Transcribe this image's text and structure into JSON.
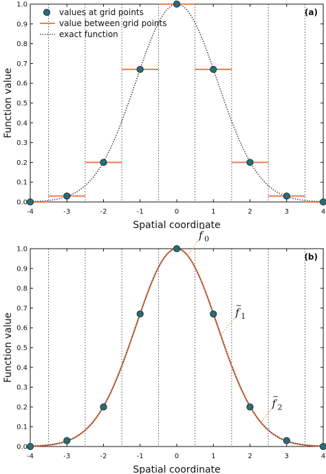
{
  "chart_data": [
    {
      "type": "line",
      "panel_label": "(a)",
      "xlabel": "Spatial coordinate",
      "ylabel": "Function value",
      "xlim": [
        -4,
        4
      ],
      "ylim": [
        0,
        1
      ],
      "x_ticks": [
        "-4",
        "-3",
        "-2",
        "-1",
        "0",
        "1",
        "2",
        "3",
        "4"
      ],
      "y_ticks": [
        "0.0",
        "0.1",
        "0.2",
        "0.3",
        "0.4",
        "0.5",
        "0.6",
        "0.7",
        "0.8",
        "0.9",
        "1.0"
      ],
      "grid_boundaries": [
        -3.5,
        -2.5,
        -1.5,
        -0.5,
        0.5,
        1.5,
        2.5,
        3.5
      ],
      "legend": {
        "placement": "top-left",
        "entries": [
          "values at grid points",
          "value between grid points",
          "exact function"
        ]
      },
      "series": [
        {
          "name": "values at grid points",
          "style": "markers",
          "x": [
            -4,
            -3,
            -2,
            -1,
            0,
            1,
            2,
            3,
            4
          ],
          "y": [
            0.0,
            0.03,
            0.2,
            0.67,
            1.0,
            0.67,
            0.2,
            0.03,
            0.0
          ]
        },
        {
          "name": "value between grid points",
          "style": "piecewise-constant",
          "x": [
            -4,
            -3,
            -2,
            -1,
            0,
            1,
            2,
            3,
            4
          ],
          "y": [
            0.0,
            0.03,
            0.2,
            0.67,
            1.0,
            0.67,
            0.2,
            0.03,
            0.0
          ]
        },
        {
          "name": "exact function",
          "style": "dotted",
          "function": "gaussian",
          "sigma": 1.12
        }
      ]
    },
    {
      "type": "line",
      "panel_label": "(b)",
      "xlabel": "Spatial coordinate",
      "ylabel": "Function value",
      "xlim": [
        -4,
        4
      ],
      "ylim": [
        0,
        1
      ],
      "x_ticks": [
        "-4",
        "-3",
        "-2",
        "-1",
        "0",
        "1",
        "2",
        "3",
        "4"
      ],
      "y_ticks": [
        "0.0",
        "0.1",
        "0.2",
        "0.3",
        "0.4",
        "0.5",
        "0.6",
        "0.7",
        "0.8",
        "0.9",
        "1.0"
      ],
      "grid_boundaries": [
        -3.5,
        -2.5,
        -1.5,
        -0.5,
        0.5,
        1.5,
        2.5,
        3.5
      ],
      "annotations": [
        {
          "base": "f",
          "sub": "0",
          "x": 0.6,
          "y": 1.05,
          "target_x": 0.3
        },
        {
          "base": "f",
          "sub": "1",
          "x": 1.6,
          "y": 0.66,
          "target_x": 1.2
        },
        {
          "base": "f",
          "sub": "2",
          "x": 2.6,
          "y": 0.2,
          "target_x": 2.3
        }
      ],
      "series": [
        {
          "style": "markers",
          "x": [
            -4,
            -3,
            -2,
            -1,
            0,
            1,
            2,
            3,
            4
          ],
          "y": [
            0.0,
            0.03,
            0.2,
            0.67,
            1.0,
            0.67,
            0.2,
            0.03,
            0.0
          ]
        },
        {
          "style": "smooth-interpolant",
          "function": "gaussian",
          "sigma": 1.12
        },
        {
          "style": "dotted",
          "function": "gaussian",
          "sigma": 1.12
        }
      ]
    }
  ],
  "colors": {
    "marker_fill": "#2e6b73",
    "marker_edge": "#10383d",
    "orange": "#f07b4f",
    "exact": "#444444",
    "vgrid": "#555555",
    "axis": "#111111"
  }
}
